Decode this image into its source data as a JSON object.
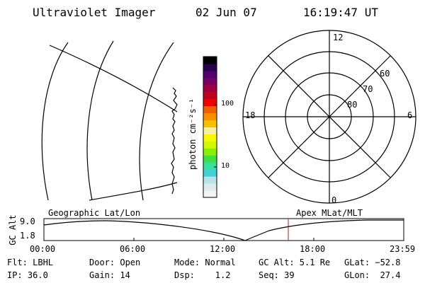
{
  "header": {
    "instrument": "Ultraviolet Imager",
    "date": "02 Jun 07",
    "time": "16:19:47 UT"
  },
  "colorbar": {
    "unit_label": "photon cm⁻²s⁻¹",
    "ticks": [
      "100",
      "10"
    ],
    "colors": [
      "#f4f4f4",
      "#dcecec",
      "#b4e4e8",
      "#40d4d8",
      "#38e0a0",
      "#40e040",
      "#88f000",
      "#d0f800",
      "#f8f800",
      "#f8f0a0",
      "#f8c000",
      "#f89000",
      "#f06000",
      "#f00000",
      "#c00020",
      "#a00040",
      "#780060",
      "#500070",
      "#280050",
      "#000000"
    ]
  },
  "polar": {
    "mlt_labels": {
      "top": "12",
      "left": "18",
      "right": "6",
      "bottom": "0"
    },
    "lat_labels": [
      "60",
      "70",
      "80"
    ]
  },
  "timeseries": {
    "title_left": "Geographic Lat/Lon",
    "title_right": "Apex MLat/MLT",
    "ylabel": "GC Alt",
    "yticks": [
      "9.0",
      "1.8"
    ],
    "xticks": [
      "00:00",
      "06:00",
      "12:00",
      "18:00",
      "23:59"
    ],
    "marker_color": "#c04040"
  },
  "footer": {
    "flt": "Flt: LBHL",
    "door": "Door: Open",
    "mode": "Mode: Normal",
    "gcalt": "GC Alt: 5.1 Re",
    "glat": "GLat: −52.8",
    "ip": "IP: 36.0",
    "gain": "Gain: 14",
    "dsp": "Dsp:    1.2",
    "seq": "Seq: 39",
    "glon": "GLon:  27.4"
  }
}
